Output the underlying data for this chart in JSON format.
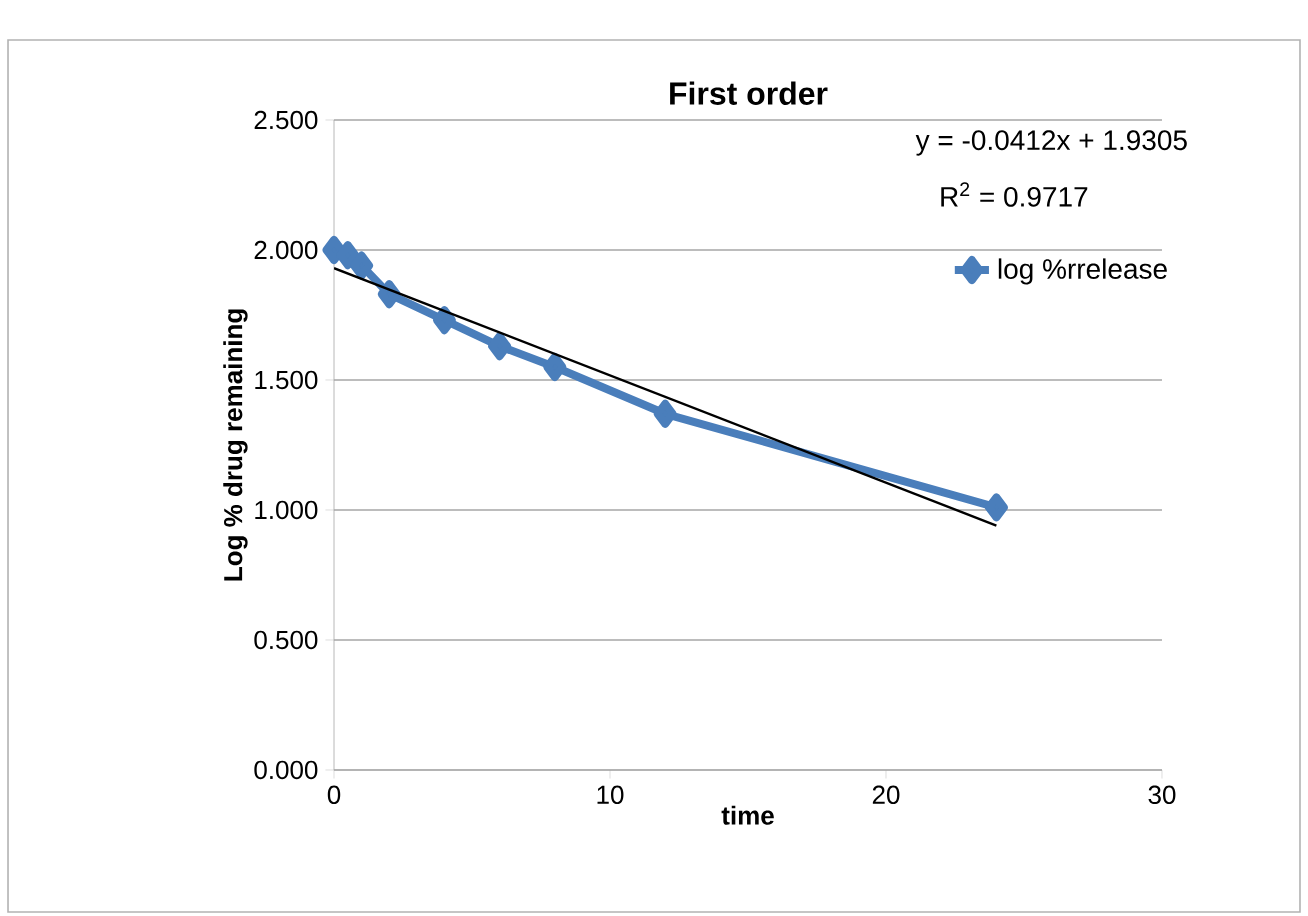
{
  "chart_data": {
    "type": "line",
    "title": "First order",
    "xlabel": "time",
    "ylabel": "Log % drug remaining",
    "x": [
      0,
      0.5,
      1,
      2,
      4,
      6,
      8,
      12,
      24
    ],
    "series": [
      {
        "name": "log %rrelease",
        "color": "#4a7ebb",
        "values": [
          2.0,
          1.98,
          1.94,
          1.83,
          1.73,
          1.63,
          1.55,
          1.37,
          1.01
        ],
        "marker": "diamond"
      },
      {
        "type": "line",
        "color": "#000000",
        "x": [
          0,
          24
        ],
        "values": [
          1.93,
          0.94
        ],
        "marker": "none"
      }
    ],
    "xlim": [
      0,
      30
    ],
    "xticks": [
      0,
      10,
      20,
      30
    ],
    "ylim": [
      0,
      2.5
    ],
    "yticks": [
      {
        "value": 0,
        "label": "0.000"
      },
      {
        "value": 0.5,
        "label": "0.500"
      },
      {
        "value": 1,
        "label": "1.000"
      },
      {
        "value": 1.5,
        "label": "1.500"
      },
      {
        "value": 2,
        "label": "2.000"
      },
      {
        "value": 2.5,
        "label": "2.500"
      }
    ],
    "grid": "y",
    "legend": "top right",
    "annotations": [
      "y = -0.0412x + 1.9305",
      "R$^{2}$ = 0.9717"
    ]
  }
}
